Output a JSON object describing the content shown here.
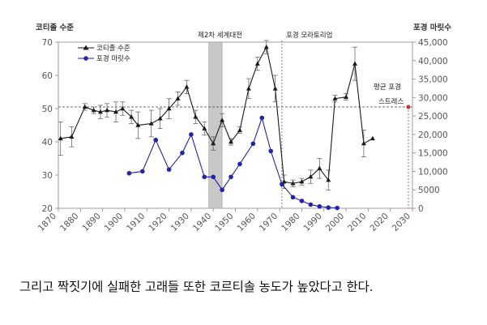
{
  "chart_data": {
    "type": "line",
    "y_left_label": "코티졸 수준",
    "y_right_label": "포경 마릿수",
    "x_ticks": [
      "1870",
      "1880",
      "1890",
      "1900",
      "1910",
      "1920",
      "1930",
      "1940",
      "1950",
      "1960",
      "1970",
      "1980",
      "1990",
      "2000",
      "2010",
      "2020",
      "2030"
    ],
    "y_left_ticks": [
      "20",
      "30",
      "40",
      "50",
      "60",
      "70"
    ],
    "y_right_ticks": [
      "0",
      "5000",
      "10,000",
      "15,000",
      "20,000",
      "25,000",
      "30,000",
      "35,000",
      "40,000",
      "45,000"
    ],
    "xlim": [
      1870,
      2030
    ],
    "ylim_left": [
      20,
      70
    ],
    "ylim_right": [
      0,
      45000
    ],
    "legend": [
      "코티졸 수준",
      "포경 마릿수"
    ],
    "annotations": {
      "wwii": "제2차 세계대전",
      "moratorium": "포경 모라토리엄",
      "stress_line1": "평균 포경",
      "stress_line2": "스트레스"
    },
    "wwii_span": [
      1938,
      1944
    ],
    "moratorium_year": 1971,
    "mean_stress_level": 50.5,
    "series": [
      {
        "name": "코티졸 수준",
        "axis": "left",
        "x": [
          1871,
          1876,
          1882,
          1886,
          1889,
          1892,
          1896,
          1899,
          1903,
          1906,
          1912,
          1916,
          1920,
          1924,
          1928,
          1932,
          1936,
          1940,
          1944,
          1948,
          1952,
          1956,
          1960,
          1964,
          1968,
          1972,
          1976,
          1980,
          1984,
          1988,
          1992,
          1995,
          2000,
          2004,
          2008,
          2012
        ],
        "values": [
          41,
          41.5,
          50.5,
          49.5,
          49,
          49.5,
          49,
          50,
          47.5,
          45,
          45.5,
          47,
          50,
          53,
          56.5,
          47.5,
          44,
          39.5,
          46.5,
          40,
          43.5,
          56,
          63.5,
          68.5,
          56,
          28,
          27.5,
          28,
          29.5,
          32,
          28.5,
          53,
          53.5,
          63.5,
          39.5,
          41
        ],
        "errors": [
          5,
          3,
          1,
          1,
          2,
          2,
          3,
          2,
          2,
          4,
          4,
          3,
          3,
          2,
          2,
          2,
          2,
          2,
          2,
          1,
          1,
          3,
          2,
          2,
          4,
          2,
          1,
          1,
          2,
          3,
          3,
          1,
          1,
          5,
          4,
          0
        ]
      },
      {
        "name": "포경 마릿수",
        "axis": "right",
        "x": [
          1902,
          1908,
          1914,
          1920,
          1926,
          1930,
          1936,
          1940,
          1944,
          1948,
          1952,
          1958,
          1962,
          1966,
          1971,
          1976,
          1980,
          1984,
          1988,
          1992,
          1996
        ],
        "values": [
          9500,
          10000,
          18500,
          10500,
          15000,
          20000,
          8500,
          8500,
          5000,
          8500,
          12000,
          17500,
          24500,
          15500,
          6500,
          3000,
          2000,
          1000,
          500,
          200,
          100
        ]
      }
    ]
  },
  "caption": "그리고 짝짓기에 실패한 고래들 또한 코르티솔 농도가 높았다고 한다.",
  "colors": {
    "cortisol": "#1a1a1a",
    "whaling": "#2323a8",
    "mean_line": "#555555",
    "stress_marker": "#c0392b",
    "wwii_band": "#c8c8c8"
  }
}
